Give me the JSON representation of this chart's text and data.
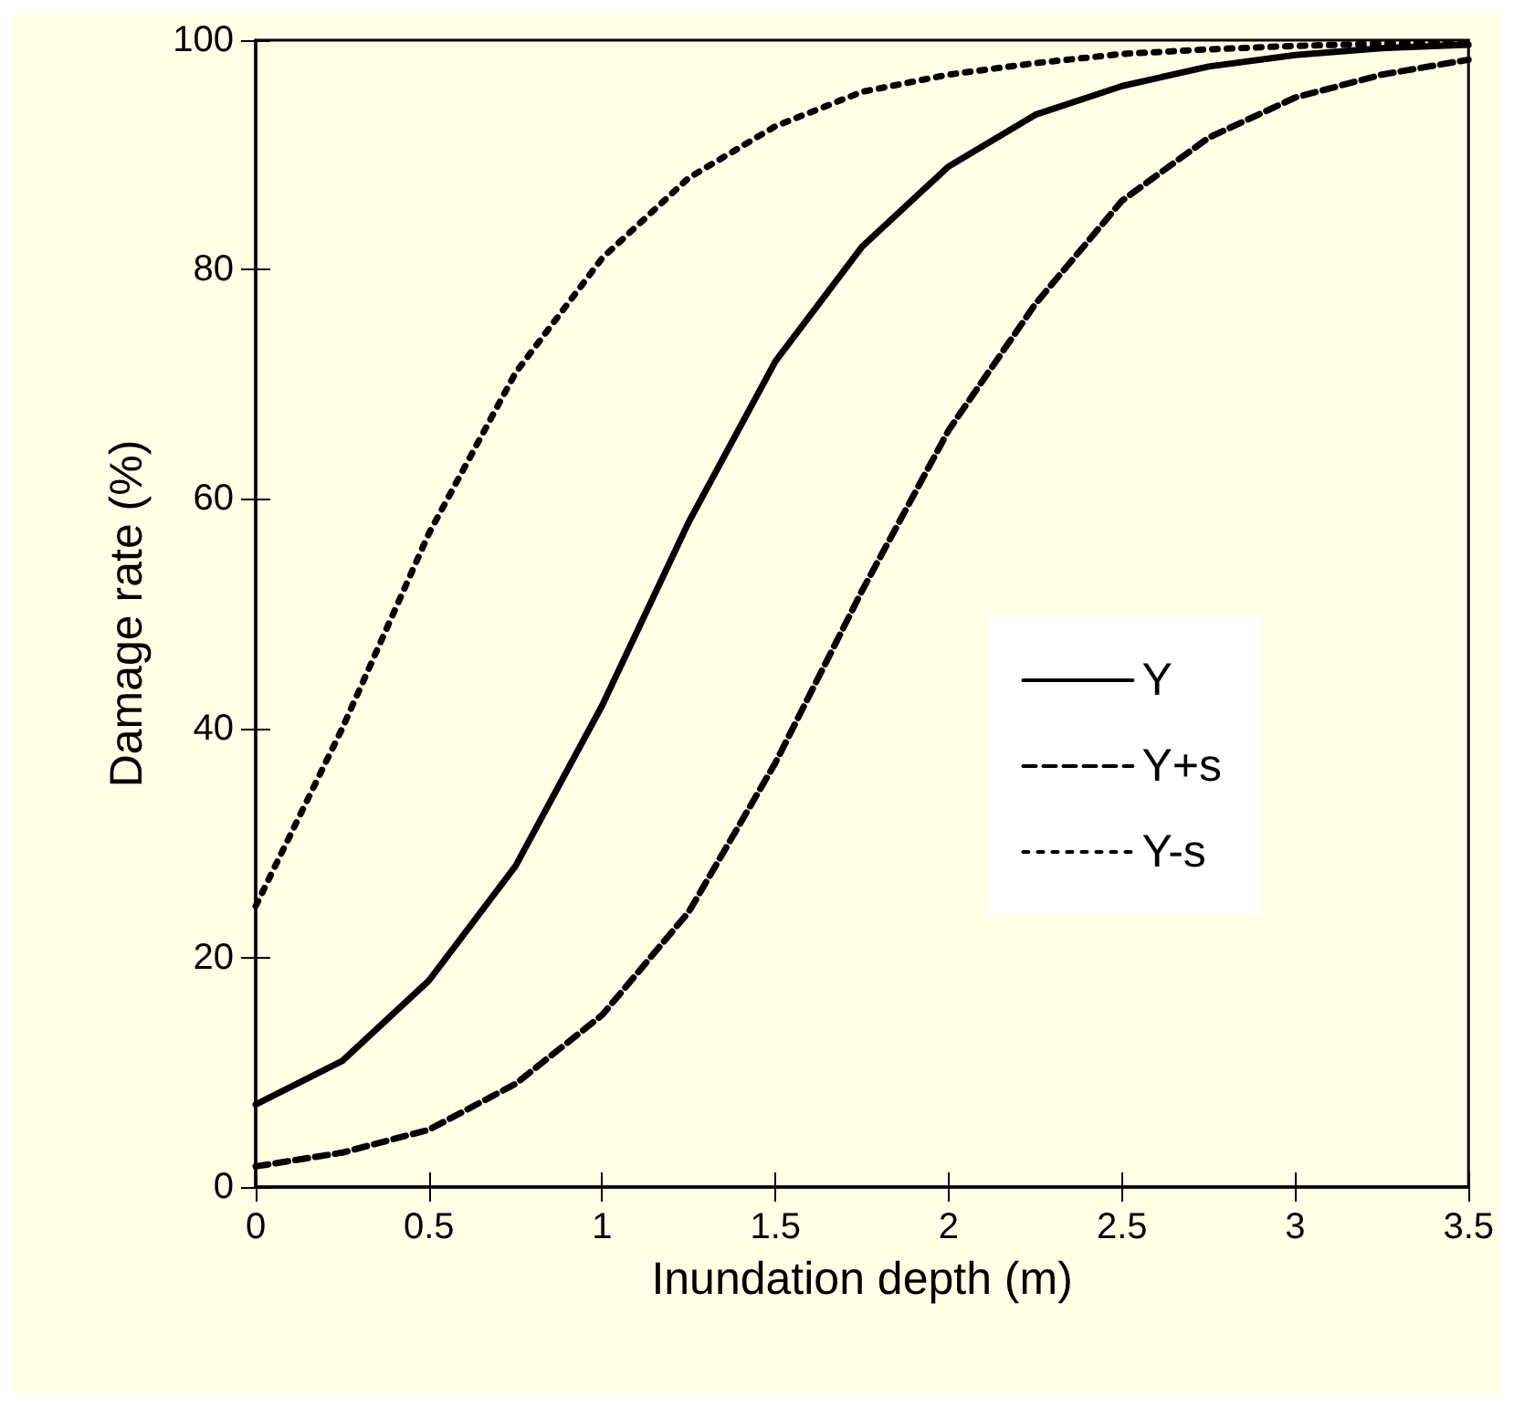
{
  "chart_data": {
    "type": "line",
    "xlabel": "Inundation depth (m)",
    "ylabel": "Damage rate (%)",
    "x": [
      0,
      0.25,
      0.5,
      0.75,
      1,
      1.25,
      1.5,
      1.75,
      2,
      2.25,
      2.5,
      2.75,
      3,
      3.25,
      3.5
    ],
    "series": [
      {
        "name": "Y",
        "color": "#000000",
        "line_style": "solid",
        "values": [
          7.2,
          11,
          18,
          28,
          42,
          58,
          72,
          82,
          89,
          93.5,
          96,
          97.7,
          98.7,
          99.3,
          99.6
        ]
      },
      {
        "name": "Y+s",
        "color": "#000000",
        "line_style": "dashed",
        "values": [
          1.8,
          3,
          5,
          9,
          15,
          24,
          37,
          52,
          66,
          77,
          86,
          91.5,
          95,
          97,
          98.3
        ]
      },
      {
        "name": "Y-s",
        "color": "#000000",
        "line_style": "dotted",
        "values": [
          24.5,
          40,
          57,
          71,
          81,
          88,
          92.5,
          95.5,
          97,
          98,
          98.8,
          99.2,
          99.5,
          99.7,
          99.8
        ]
      }
    ],
    "xlim": [
      0,
      3.5
    ],
    "xticks": [
      0,
      0.5,
      1,
      1.5,
      2,
      2.5,
      3,
      3.5
    ],
    "ylim": [
      0,
      100
    ],
    "yticks": [
      0,
      20,
      40,
      60,
      80,
      100
    ],
    "grid": false,
    "legend": "right",
    "marker": "none"
  }
}
